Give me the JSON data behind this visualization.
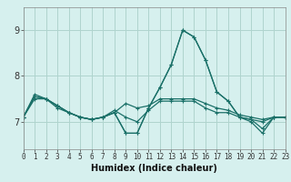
{
  "xlabel": "Humidex (Indice chaleur)",
  "bg_color": "#d6f0ee",
  "grid_color": "#afd4ce",
  "line_color": "#1a7068",
  "x_ticks": [
    0,
    1,
    2,
    3,
    4,
    5,
    6,
    7,
    8,
    9,
    10,
    11,
    12,
    13,
    14,
    15,
    16,
    17,
    18,
    19,
    20,
    21,
    22,
    23
  ],
  "y_ticks": [
    7,
    8,
    9
  ],
  "ylim": [
    6.4,
    9.5
  ],
  "xlim": [
    0,
    23
  ],
  "series": [
    [
      7.1,
      7.6,
      7.5,
      7.3,
      7.2,
      7.1,
      7.05,
      7.1,
      7.2,
      6.75,
      6.75,
      7.3,
      7.75,
      8.25,
      9.0,
      8.85,
      8.35,
      7.65,
      7.45,
      7.1,
      7.05,
      6.85,
      7.1,
      7.1
    ],
    [
      7.1,
      7.55,
      7.5,
      7.35,
      7.2,
      7.1,
      7.05,
      7.1,
      7.2,
      7.4,
      7.3,
      7.35,
      7.5,
      7.5,
      7.5,
      7.5,
      7.4,
      7.3,
      7.25,
      7.15,
      7.1,
      7.05,
      7.1,
      7.1
    ],
    [
      7.1,
      7.55,
      7.5,
      7.35,
      7.2,
      7.1,
      7.05,
      7.1,
      7.2,
      6.75,
      6.75,
      7.3,
      7.75,
      8.25,
      9.0,
      8.85,
      8.35,
      7.65,
      7.45,
      7.1,
      7.0,
      6.75,
      7.1,
      7.1
    ],
    [
      7.1,
      7.5,
      7.5,
      7.35,
      7.2,
      7.1,
      7.05,
      7.1,
      7.25,
      7.1,
      7.0,
      7.25,
      7.45,
      7.45,
      7.45,
      7.45,
      7.3,
      7.2,
      7.2,
      7.1,
      7.05,
      7.0,
      7.1,
      7.1
    ]
  ]
}
